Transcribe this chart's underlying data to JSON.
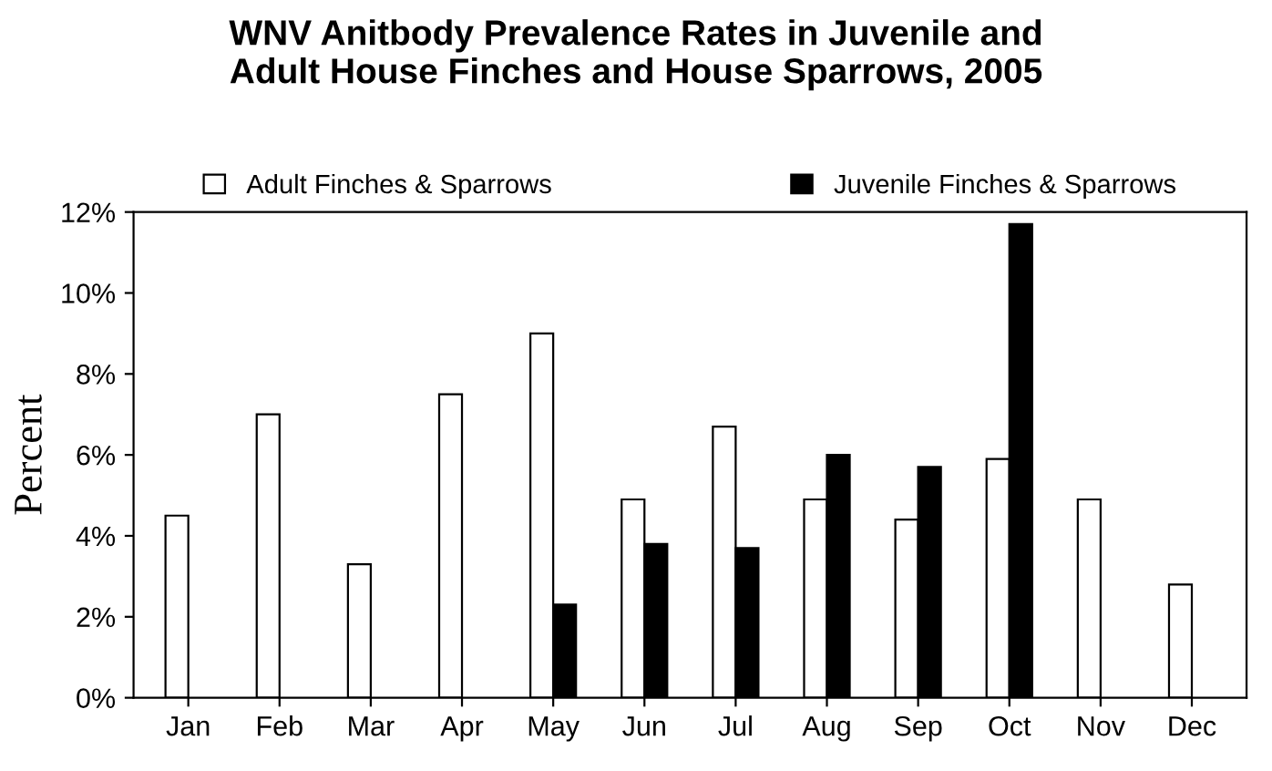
{
  "chart_data": {
    "type": "bar",
    "title": "WNV Anitbody Prevalence Rates in Juvenile and\nAdult House Finches and House Sparrows, 2005",
    "ylabel": "Percent",
    "categories": [
      "Jan",
      "Feb",
      "Mar",
      "Apr",
      "May",
      "Jun",
      "Jul",
      "Aug",
      "Sep",
      "Oct",
      "Nov",
      "Dec"
    ],
    "series": [
      {
        "name": "Adult Finches & Sparrows",
        "color": "#ffffff",
        "values": [
          4.5,
          7.0,
          3.3,
          7.5,
          9.0,
          4.9,
          6.7,
          4.9,
          4.4,
          5.9,
          4.9,
          2.8
        ]
      },
      {
        "name": "Juvenile Finches & Sparrows",
        "color": "#000000",
        "values": [
          null,
          null,
          null,
          null,
          2.3,
          3.8,
          3.7,
          6.0,
          5.7,
          11.7,
          null,
          null
        ]
      }
    ],
    "ylim": [
      0,
      12
    ],
    "yticks": [
      {
        "value": 0,
        "label": "0%"
      },
      {
        "value": 2,
        "label": "2%"
      },
      {
        "value": 4,
        "label": "4%"
      },
      {
        "value": 6,
        "label": "6%"
      },
      {
        "value": 8,
        "label": "8%"
      },
      {
        "value": 10,
        "label": "10%"
      },
      {
        "value": 12,
        "label": "12%"
      }
    ],
    "grid": false,
    "legend": "top"
  }
}
